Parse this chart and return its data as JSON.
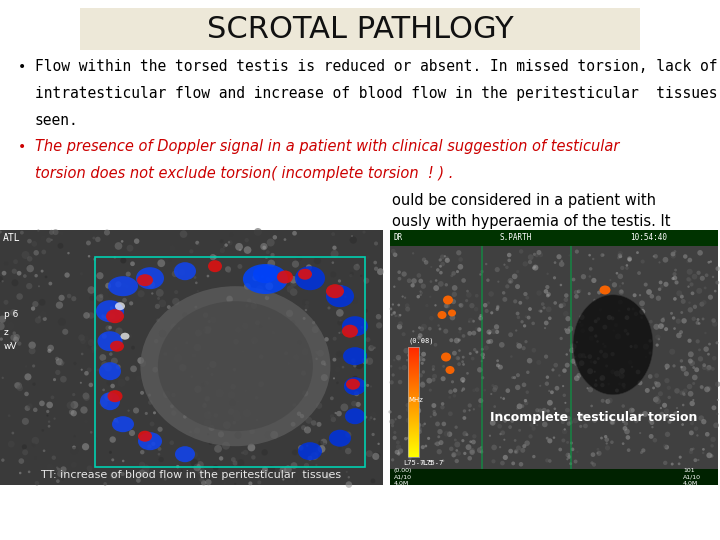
{
  "title": "SCROTAL PATHLOGY",
  "title_bg": "#ede8d8",
  "title_color": "#111111",
  "title_fontsize": 22,
  "bg_color": "#ffffff",
  "bullet1_text": "Flow within the torsed testis is reduced or absent. In missed torsion, lack of\nintratesticular flow and increase of blood flow in the peritesticular  tissues are\nseen.",
  "bullet1_color": "#000000",
  "bullet2_line1": "The presence of Doppler signal in a patient with clinical suggestion of testicular",
  "bullet2_line2": "torsion does not exclude torsion( incomplete torsion  ! ) .",
  "bullet2_color": "#cc0000",
  "bullet3_line1": "ould be considered in a patient with",
  "bullet3_line2": "ously with hyperaemia of the testis. It",
  "bullet3_color": "#000000",
  "img1_caption": "TT: increase of blood flow in the peritesticular  tissues",
  "img2_label": "Incomplete  testicular torsion",
  "fontsize_body": 10.5,
  "fontsize_caption": 8
}
